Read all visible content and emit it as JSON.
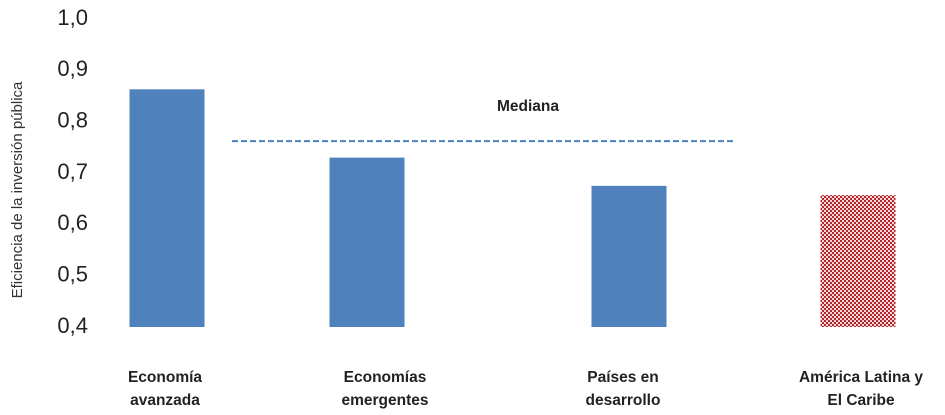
{
  "chart_data": {
    "type": "bar",
    "ylabel": "Eficiencia de la inversión pública",
    "ylim": [
      0.4,
      1.0
    ],
    "yticks": [
      "1,0",
      "0,9",
      "0,8",
      "0,7",
      "0,6",
      "0,5",
      "0,4"
    ],
    "ytick_values": [
      1.0,
      0.9,
      0.8,
      0.7,
      0.6,
      0.5,
      0.4
    ],
    "categories": [
      [
        "Economía",
        "avanzada"
      ],
      [
        "Economías",
        "emergentes"
      ],
      [
        "Países en",
        "desarrollo"
      ],
      [
        "América Latina y",
        "El Caribe"
      ]
    ],
    "values": [
      0.863,
      0.73,
      0.675,
      0.657
    ],
    "bar_styles": [
      "solid",
      "solid",
      "solid",
      "patterned"
    ],
    "colors": {
      "bar": "#4f81bd",
      "pattern_red": "#b3262c",
      "median_line": "#4f81bd"
    },
    "median": {
      "label": "Mediana",
      "value": 0.762
    },
    "grid": false,
    "legend": "none"
  }
}
